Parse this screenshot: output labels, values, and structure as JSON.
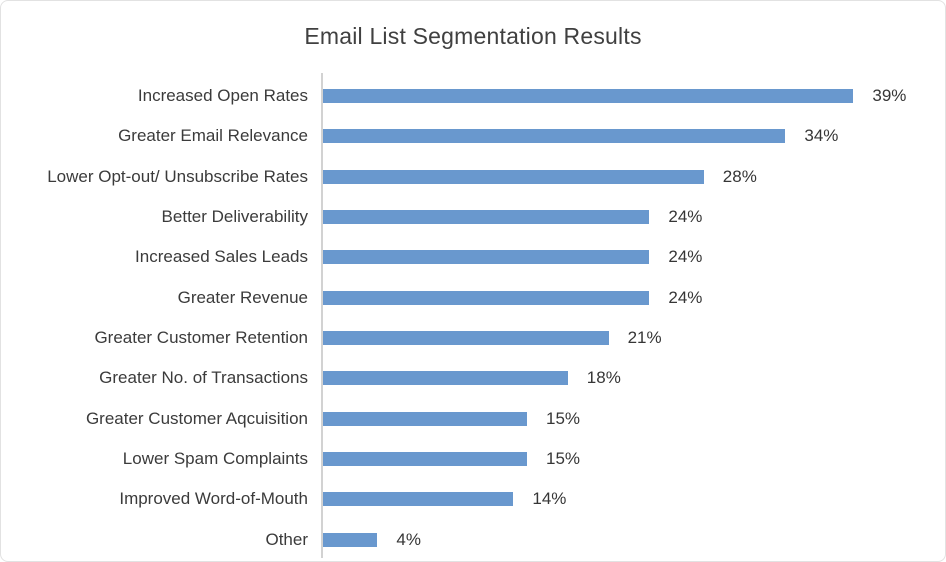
{
  "page": {
    "background": "#ffffff",
    "border_color": "#e2e2e2"
  },
  "chart_data": {
    "type": "bar",
    "orientation": "horizontal",
    "title": "Email List Segmentation Results",
    "categories": [
      "Increased Open Rates",
      "Greater Email Relevance",
      "Lower Opt-out/ Unsubscribe Rates",
      "Better Deliverability",
      "Increased Sales Leads",
      "Greater Revenue",
      "Greater Customer Retention",
      "Greater No. of Transactions",
      "Greater Customer Aqcuisition",
      "Lower Spam Complaints",
      "Improved Word-of-Mouth",
      "Other"
    ],
    "values": [
      39,
      34,
      28,
      24,
      24,
      24,
      21,
      18,
      15,
      15,
      14,
      4
    ],
    "value_labels": [
      "39%",
      "34%",
      "28%",
      "24%",
      "24%",
      "24%",
      "21%",
      "18%",
      "15%",
      "15%",
      "14%",
      "4%"
    ],
    "xlabel": "",
    "ylabel": "",
    "xlim": [
      0,
      40
    ],
    "grid": false,
    "legend": false,
    "value_label_position": "end-of-bar",
    "bar_color": "#6998ce",
    "axis_line_color": "#d2d2d2",
    "title_color": "#404040",
    "label_color": "#3b3b3b"
  }
}
